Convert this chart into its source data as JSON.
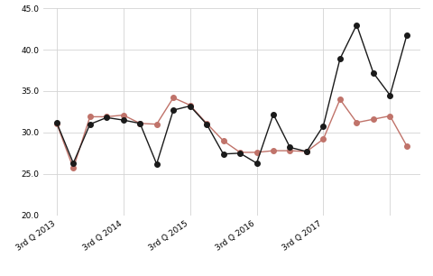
{
  "black_line": [
    31.2,
    26.3,
    31.0,
    31.8,
    31.5,
    31.1,
    26.2,
    32.7,
    33.2,
    31.0,
    27.4,
    27.5,
    26.3,
    32.2,
    28.2,
    27.7,
    30.8,
    38.9,
    43.0,
    37.2,
    34.5,
    41.7
  ],
  "red_line": [
    31.1,
    25.7,
    31.9,
    31.9,
    32.1,
    31.1,
    31.0,
    34.2,
    33.3,
    31.1,
    29.0,
    27.6,
    27.6,
    27.8,
    27.8,
    27.7,
    29.2,
    34.0,
    31.2,
    31.6,
    32.0,
    28.4
  ],
  "x_tick_positions": [
    0,
    4,
    8,
    12,
    16,
    20
  ],
  "x_tick_labels": [
    "3rd Q 2013",
    "3rd Q 2014",
    "3rd Q 2015",
    "3rd Q 2016",
    "3rd Q 2017",
    ""
  ],
  "ylim": [
    20.0,
    45.0
  ],
  "yticks": [
    20.0,
    25.0,
    30.0,
    35.0,
    40.0,
    45.0
  ],
  "black_color": "#1a1a1a",
  "red_color": "#c0736a",
  "grid_color": "#d3d3d3",
  "bg_color": "#ffffff",
  "marker_size": 4,
  "linewidth": 1.0
}
